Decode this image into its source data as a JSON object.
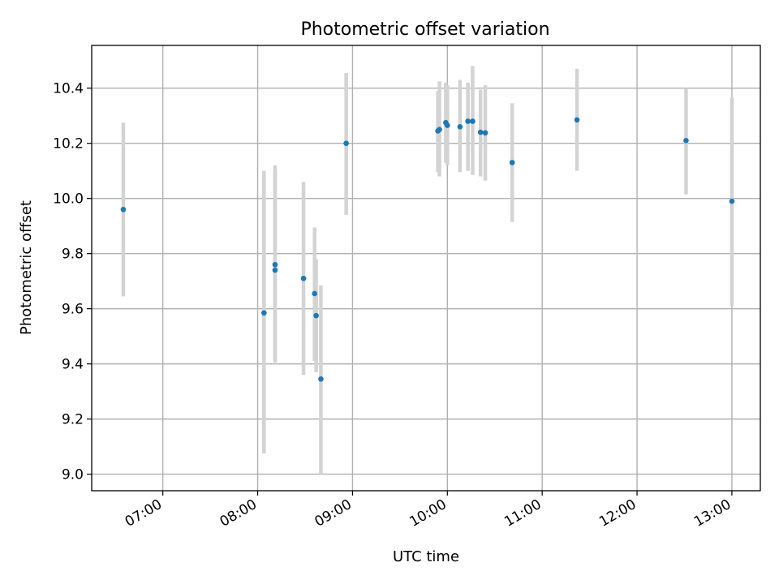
{
  "chart_data": {
    "type": "scatter",
    "title": "Photometric offset variation",
    "xlabel": "UTC time",
    "ylabel": "Photometric offset",
    "x_ticks": [
      "07:00",
      "08:00",
      "09:00",
      "10:00",
      "11:00",
      "12:00",
      "13:00"
    ],
    "y_ticks": [
      "9.0",
      "9.2",
      "9.4",
      "9.6",
      "9.8",
      "10.0",
      "10.2",
      "10.4"
    ],
    "xlim": [
      "06:15",
      "13:18"
    ],
    "ylim": [
      8.94,
      10.555
    ],
    "grid": true,
    "error_bar_color": "#d3d3d3",
    "point_color": "#1f77b4",
    "points": [
      {
        "x": "06:35",
        "y": 9.96,
        "y_low": 9.645,
        "y_high": 10.275
      },
      {
        "x": "08:04",
        "y": 9.585,
        "y_low": 9.075,
        "y_high": 10.1
      },
      {
        "x": "08:11",
        "y": 9.76,
        "y_low": 9.405,
        "y_high": 10.12
      },
      {
        "x": "08:11",
        "y": 9.74,
        "y_low": 9.41,
        "y_high": 10.1
      },
      {
        "x": "08:29",
        "y": 9.71,
        "y_low": 9.36,
        "y_high": 10.06
      },
      {
        "x": "08:36",
        "y": 9.655,
        "y_low": 9.41,
        "y_high": 9.895
      },
      {
        "x": "08:37",
        "y": 9.575,
        "y_low": 9.37,
        "y_high": 9.78
      },
      {
        "x": "08:40",
        "y": 9.345,
        "y_low": 9.0,
        "y_high": 9.685
      },
      {
        "x": "08:56",
        "y": 10.2,
        "y_low": 9.94,
        "y_high": 10.455
      },
      {
        "x": "09:54",
        "y": 10.245,
        "y_low": 10.095,
        "y_high": 10.39
      },
      {
        "x": "09:55",
        "y": 10.25,
        "y_low": 10.08,
        "y_high": 10.425
      },
      {
        "x": "09:59",
        "y": 10.275,
        "y_low": 10.13,
        "y_high": 10.42
      },
      {
        "x": "10:00",
        "y": 10.265,
        "y_low": 10.12,
        "y_high": 10.41
      },
      {
        "x": "10:08",
        "y": 10.26,
        "y_low": 10.095,
        "y_high": 10.43
      },
      {
        "x": "10:13",
        "y": 10.28,
        "y_low": 10.1,
        "y_high": 10.42
      },
      {
        "x": "10:16",
        "y": 10.28,
        "y_low": 10.085,
        "y_high": 10.48
      },
      {
        "x": "10:21",
        "y": 10.24,
        "y_low": 10.08,
        "y_high": 10.395
      },
      {
        "x": "10:24",
        "y": 10.238,
        "y_low": 10.065,
        "y_high": 10.41
      },
      {
        "x": "10:41",
        "y": 10.13,
        "y_low": 9.915,
        "y_high": 10.345
      },
      {
        "x": "11:22",
        "y": 10.285,
        "y_low": 10.1,
        "y_high": 10.47
      },
      {
        "x": "12:31",
        "y": 10.21,
        "y_low": 10.015,
        "y_high": 10.4
      },
      {
        "x": "13:00",
        "y": 9.99,
        "y_low": 9.61,
        "y_high": 10.365
      }
    ]
  }
}
